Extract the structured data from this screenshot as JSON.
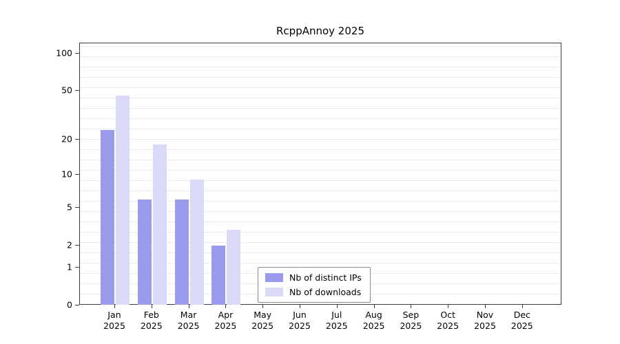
{
  "title": "RcppAnnoy 2025",
  "chart_data": {
    "type": "bar",
    "title": "RcppAnnoy 2025",
    "scale": "log1p",
    "categories": [
      "Jan",
      "Feb",
      "Mar",
      "Apr",
      "May",
      "Jun",
      "Jul",
      "Aug",
      "Sep",
      "Oct",
      "Nov",
      "Dec"
    ],
    "year": "2025",
    "series": [
      {
        "name": "Nb of distinct IPs",
        "color": "#9b9bee",
        "values": [
          24,
          6,
          6,
          2,
          0,
          0,
          0,
          0,
          0,
          0,
          0,
          0
        ]
      },
      {
        "name": "Nb of downloads",
        "color": "#dadaf8",
        "values": [
          46,
          18,
          9,
          3,
          0,
          0,
          0,
          0,
          0,
          0,
          0,
          0
        ]
      }
    ],
    "yticks": [
      0,
      1,
      2,
      5,
      10,
      20,
      50,
      100
    ],
    "ylim": [
      0,
      130
    ],
    "grid": "horizontal",
    "legend_position": "bottom-center"
  }
}
